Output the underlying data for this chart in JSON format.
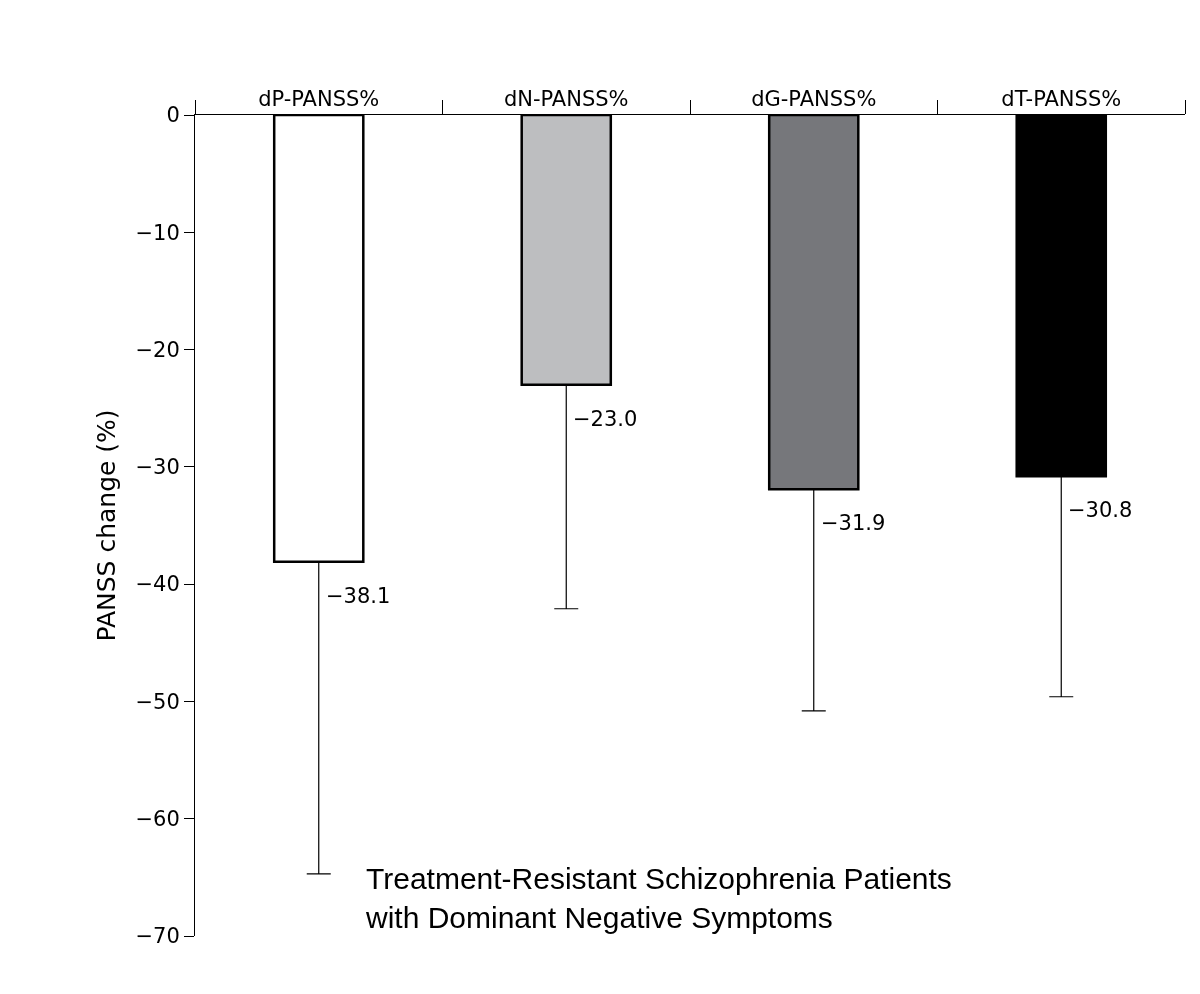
{
  "chart_data": {
    "type": "bar",
    "ylabel": "PANSS change (%)",
    "categories": [
      "dP-PANSS%",
      "dN-PANSS%",
      "dG-PANSS%",
      "dT-PANSS%"
    ],
    "values": [
      -38.1,
      -23.0,
      -31.9,
      -30.8
    ],
    "colors": [
      "#ffffff",
      "#bdbec0",
      "#76777b",
      "#000000"
    ],
    "errors": [
      [
        -64.7,
        -38.1
      ],
      [
        -42.1,
        -23.0
      ],
      [
        -50.8,
        -31.9
      ],
      [
        -49.6,
        -30.8
      ]
    ],
    "value_labels": [
      "−38.1",
      "−23.0",
      "−31.9",
      "−30.8"
    ],
    "ylim": [
      -70,
      0
    ],
    "yticks": [
      {
        "value": -70,
        "label": "−70"
      },
      {
        "value": -60,
        "label": "−60"
      },
      {
        "value": -50,
        "label": "−50"
      },
      {
        "value": -40,
        "label": "−40"
      },
      {
        "value": -30,
        "label": "−30"
      },
      {
        "value": -20,
        "label": "−20"
      },
      {
        "value": -10,
        "label": "−10"
      },
      0
    ],
    "annotations": [
      "Treatment-Resistant Schizophrenia Patients\nwith Dominant Negative Symptoms"
    ]
  }
}
